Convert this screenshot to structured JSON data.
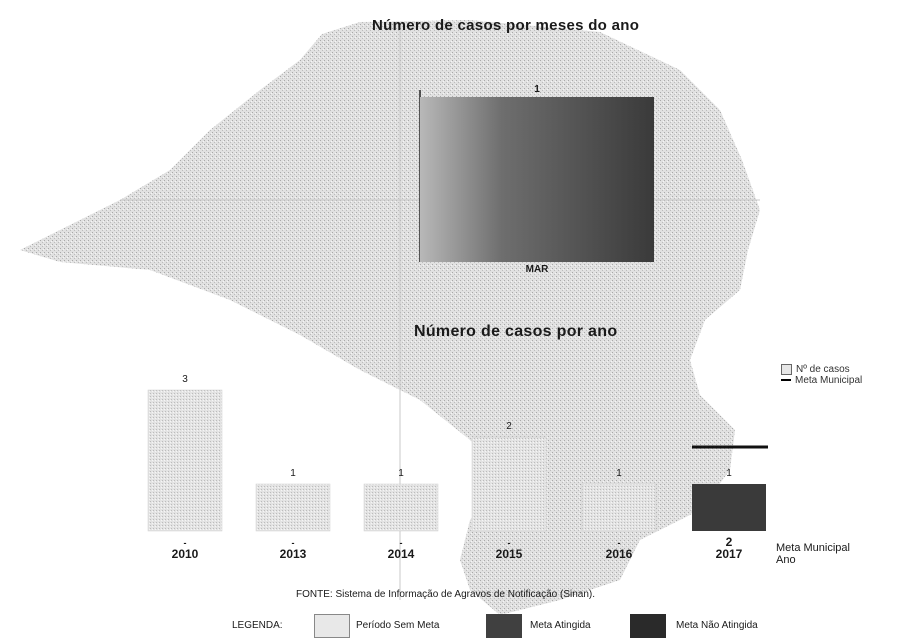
{
  "colors": {
    "map_fill": "#d6d6d6",
    "bar_light": "#e3e3e3",
    "bar_dark": "#3a3a3a",
    "meta_line": "#111111"
  },
  "chart_data": [
    {
      "type": "bar",
      "title": "Número de casos por meses do ano",
      "categories": [
        "MAR"
      ],
      "values": [
        1
      ],
      "value_labels": [
        "1"
      ],
      "bar_style": "gradient-light-to-dark"
    },
    {
      "type": "bar",
      "title": "Número de casos por ano",
      "categories": [
        "2010",
        "2013",
        "2014",
        "2015",
        "2016",
        "2017"
      ],
      "values": [
        3,
        1,
        1,
        2,
        1,
        1
      ],
      "value_labels": [
        "3",
        "1",
        "1",
        "2",
        "1",
        "1"
      ],
      "meta_municipal": {
        "label": "Meta Municipal",
        "values": [
          null,
          null,
          null,
          null,
          null,
          2
        ],
        "value_labels": [
          "-",
          "-",
          "-",
          "-",
          "-",
          "2"
        ]
      },
      "bar_status": [
        "Período Sem Meta",
        "Período Sem Meta",
        "Período Sem Meta",
        "Período Sem Meta",
        "Período Sem Meta",
        "Meta Não Atingida"
      ],
      "xlabel": "Ano",
      "legend": {
        "position": "right",
        "entries": [
          "Nº de casos",
          "Meta Municipal"
        ]
      }
    }
  ],
  "labels": {
    "meta_municipal": "Meta Municipal",
    "ano": "Ano",
    "legend_count": "Nº de casos",
    "legend_meta": "Meta Municipal"
  },
  "footer": {
    "fonte": "FONTE: Sistema de Informação de Agravos de Notificação (Sinan).",
    "legenda_title": "LEGENDA:",
    "legend_items": [
      "Período Sem Meta",
      "Meta Atingida",
      "Meta Não Atingida"
    ]
  }
}
